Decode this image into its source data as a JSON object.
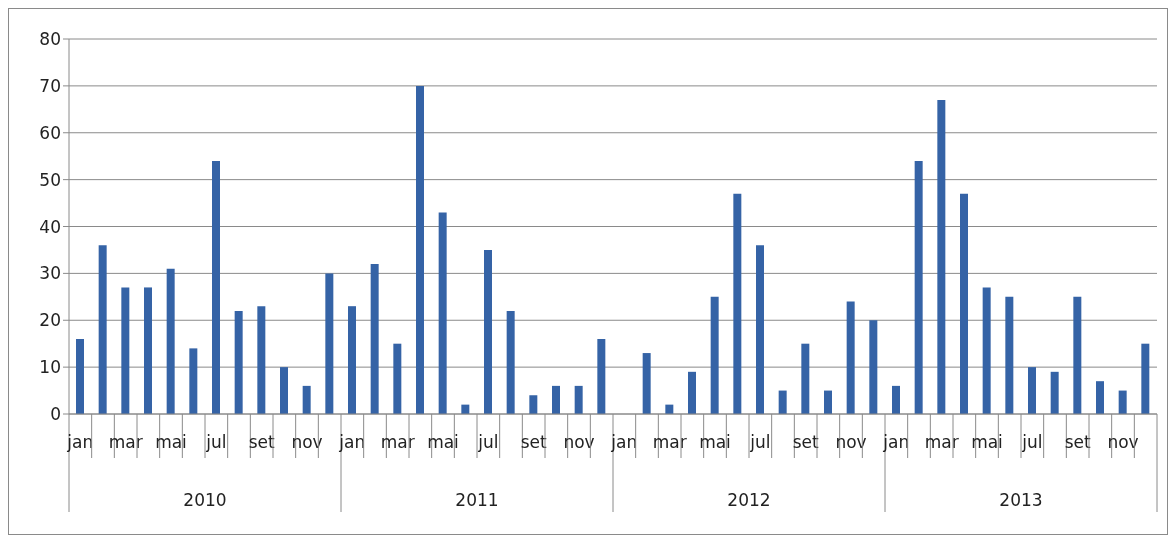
{
  "chart_data": {
    "type": "bar",
    "categories": [
      "jan",
      null,
      "mar",
      null,
      "mai",
      null,
      "jul",
      null,
      "set",
      null,
      "nov",
      null,
      "jan",
      null,
      "mar",
      null,
      "mai",
      null,
      "jul",
      null,
      "set",
      null,
      "nov",
      null,
      "jan",
      null,
      "mar",
      null,
      "mai",
      null,
      "jul",
      null,
      "set",
      null,
      "nov",
      null,
      "jan",
      null,
      "mar",
      null,
      "mai",
      null,
      "jul",
      null,
      "set",
      null,
      "nov",
      null
    ],
    "values": [
      16,
      36,
      27,
      27,
      31,
      14,
      54,
      22,
      23,
      10,
      6,
      30,
      23,
      32,
      15,
      70,
      43,
      2,
      35,
      22,
      4,
      6,
      6,
      16,
      0,
      13,
      2,
      9,
      25,
      47,
      36,
      5,
      15,
      5,
      24,
      20,
      6,
      54,
      67,
      47,
      27,
      25,
      10,
      9,
      25,
      7,
      5,
      15
    ],
    "color": "#3563a6",
    "annotations": [
      "2010",
      "2011",
      "2012",
      "2013"
    ],
    "ylim": [
      0,
      80
    ],
    "yticks": [
      0,
      10,
      20,
      30,
      40,
      50,
      60,
      70,
      80
    ],
    "grid": "y"
  }
}
